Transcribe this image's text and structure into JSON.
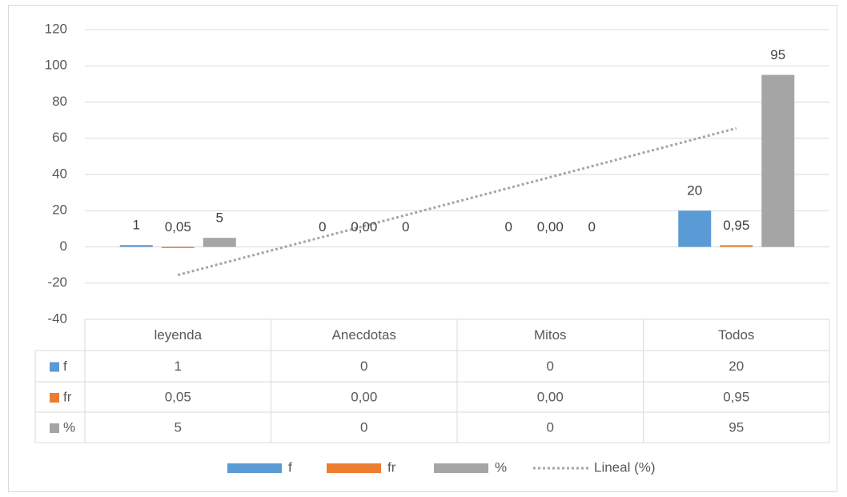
{
  "chart_data": {
    "type": "bar",
    "categories": [
      "leyenda",
      "Anecdotas",
      "Mitos",
      "Todos"
    ],
    "series": [
      {
        "name": "f",
        "values": [
          1,
          0,
          0,
          20
        ],
        "labels": [
          "1",
          "0",
          "0",
          "20"
        ],
        "color": "#5b9bd5"
      },
      {
        "name": "fr",
        "values": [
          0.05,
          0.0,
          0.0,
          0.95
        ],
        "labels": [
          "0,05",
          "0,00",
          "0,00",
          "0,95"
        ],
        "color": "#ed7d31"
      },
      {
        "name": "%",
        "values": [
          5,
          0,
          0,
          95
        ],
        "labels": [
          "5",
          "0",
          "0",
          "95"
        ],
        "color": "#a5a5a5"
      }
    ],
    "trendline": {
      "name": "Lineal (%)",
      "of_series": "%",
      "type": "linear",
      "color": "#a5a5a5",
      "style": "dotted"
    },
    "ylim": [
      -40,
      120
    ],
    "yticks": [
      120,
      100,
      80,
      60,
      40,
      20,
      0,
      -20,
      -40
    ],
    "grid": true,
    "data_table": true,
    "legend_position": "bottom"
  }
}
